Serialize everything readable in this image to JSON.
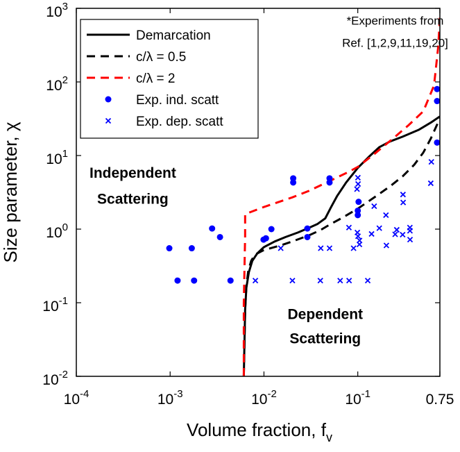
{
  "chart_data": {
    "type": "line",
    "xlabel": "Volume fraction, f",
    "xlabel_sub": "v",
    "ylabel": "Size parameter, χ",
    "x_scale": "log",
    "y_scale": "log",
    "xlim": [
      0.0001,
      0.75
    ],
    "ylim": [
      0.01,
      1000
    ],
    "x_ticks": [
      {
        "v": 0.0001,
        "base": "10",
        "exp": "-4"
      },
      {
        "v": 0.001,
        "base": "10",
        "exp": "-3"
      },
      {
        "v": 0.01,
        "base": "10",
        "exp": "-2"
      },
      {
        "v": 0.1,
        "base": "10",
        "exp": "-1"
      },
      {
        "v": 0.75,
        "base": "0.75",
        "exp": ""
      }
    ],
    "y_ticks": [
      {
        "v": 0.01,
        "base": "10",
        "exp": "-2"
      },
      {
        "v": 0.1,
        "base": "10",
        "exp": "-1"
      },
      {
        "v": 1,
        "base": "10",
        "exp": "0"
      },
      {
        "v": 10,
        "base": "10",
        "exp": "1"
      },
      {
        "v": 100,
        "base": "10",
        "exp": "2"
      },
      {
        "v": 1000,
        "base": "10",
        "exp": "3"
      }
    ],
    "grid": false,
    "legend_position": "top-left",
    "series": [
      {
        "name": "Demarcation",
        "kind": "line",
        "color": "#000000",
        "dash": "solid",
        "points": [
          [
            0.0061,
            0.01
          ],
          [
            0.0062,
            0.03
          ],
          [
            0.0063,
            0.08
          ],
          [
            0.0065,
            0.16
          ],
          [
            0.0069,
            0.26
          ],
          [
            0.0075,
            0.37
          ],
          [
            0.0085,
            0.47
          ],
          [
            0.01,
            0.57
          ],
          [
            0.013,
            0.68
          ],
          [
            0.017,
            0.78
          ],
          [
            0.023,
            0.9
          ],
          [
            0.03,
            1.04
          ],
          [
            0.037,
            1.17
          ],
          [
            0.045,
            1.4
          ],
          [
            0.052,
            2.0
          ],
          [
            0.06,
            2.8
          ],
          [
            0.075,
            4.3
          ],
          [
            0.1,
            6.8
          ],
          [
            0.13,
            9.5
          ],
          [
            0.17,
            13.0
          ],
          [
            0.22,
            15.5
          ],
          [
            0.3,
            18.0
          ],
          [
            0.45,
            22.5
          ],
          [
            0.6,
            28.0
          ],
          [
            0.75,
            34.0
          ]
        ]
      },
      {
        "name": "c/λ = 0.5",
        "kind": "line",
        "color": "#000000",
        "dash": "dashed",
        "points": [
          [
            0.0061,
            0.01
          ],
          [
            0.0062,
            0.03
          ],
          [
            0.0063,
            0.08
          ],
          [
            0.0065,
            0.17
          ],
          [
            0.0068,
            0.27
          ],
          [
            0.0073,
            0.37
          ],
          [
            0.008,
            0.45
          ],
          [
            0.01,
            0.52
          ],
          [
            0.015,
            0.6
          ],
          [
            0.02,
            0.68
          ],
          [
            0.03,
            0.82
          ],
          [
            0.04,
            0.97
          ],
          [
            0.05,
            1.15
          ],
          [
            0.07,
            1.45
          ],
          [
            0.1,
            1.9
          ],
          [
            0.15,
            2.7
          ],
          [
            0.22,
            3.8
          ],
          [
            0.3,
            5.2
          ],
          [
            0.4,
            7.5
          ],
          [
            0.5,
            11.0
          ],
          [
            0.6,
            17.0
          ],
          [
            0.75,
            32.0
          ]
        ]
      },
      {
        "name": "c/λ = 2",
        "kind": "line",
        "color": "#ff0000",
        "dash": "dashed",
        "points": [
          [
            0.0061,
            0.01
          ],
          [
            0.0061,
            0.1
          ],
          [
            0.0062,
            0.3
          ],
          [
            0.0063,
            0.8
          ],
          [
            0.0063,
            1.6
          ],
          [
            0.01,
            2.0
          ],
          [
            0.02,
            2.7
          ],
          [
            0.03,
            3.3
          ],
          [
            0.05,
            4.5
          ],
          [
            0.08,
            6.0
          ],
          [
            0.1,
            7.0
          ],
          [
            0.15,
            10.5
          ],
          [
            0.25,
            18.0
          ],
          [
            0.35,
            26.0
          ],
          [
            0.5,
            40.0
          ],
          [
            0.65,
            90.0
          ],
          [
            0.72,
            300.0
          ],
          [
            0.75,
            750.0
          ]
        ]
      },
      {
        "name": "Exp. ind. scatt",
        "kind": "marker",
        "marker": "circle",
        "color": "#0000ff",
        "points": [
          [
            0.00098,
            0.55
          ],
          [
            0.0017,
            0.55
          ],
          [
            0.0028,
            1.02
          ],
          [
            0.0034,
            0.78
          ],
          [
            0.0012,
            0.2
          ],
          [
            0.0018,
            0.2
          ],
          [
            0.0044,
            0.2
          ],
          [
            0.0099,
            0.72
          ],
          [
            0.0105,
            0.75
          ],
          [
            0.012,
            1.0
          ],
          [
            0.0205,
            4.3
          ],
          [
            0.0205,
            4.9
          ],
          [
            0.029,
            0.78
          ],
          [
            0.029,
            1.02
          ],
          [
            0.05,
            4.3
          ],
          [
            0.05,
            4.9
          ],
          [
            0.1,
            1.55
          ],
          [
            0.1,
            1.78
          ],
          [
            0.102,
            2.35
          ],
          [
            0.7,
            80.0
          ],
          [
            0.7,
            55.0
          ],
          [
            0.7,
            15.0
          ]
        ]
      },
      {
        "name": "Exp. dep. scatt",
        "kind": "marker",
        "marker": "x",
        "color": "#0000ff",
        "points": [
          [
            0.0081,
            0.2
          ],
          [
            0.0201,
            0.2
          ],
          [
            0.0399,
            0.2
          ],
          [
            0.0649,
            0.2
          ],
          [
            0.0808,
            0.2
          ],
          [
            0.1277,
            0.2
          ],
          [
            0.0151,
            0.55
          ],
          [
            0.0403,
            0.55
          ],
          [
            0.05,
            0.55
          ],
          [
            0.0902,
            0.55
          ],
          [
            0.0805,
            1.05
          ],
          [
            0.1042,
            0.62
          ],
          [
            0.099,
            0.9
          ],
          [
            0.1044,
            0.7
          ],
          [
            0.1006,
            0.8
          ],
          [
            0.1403,
            0.86
          ],
          [
            0.2018,
            0.6
          ],
          [
            0.1696,
            1.03
          ],
          [
            0.2602,
            0.98
          ],
          [
            0.3599,
            0.95
          ],
          [
            0.2502,
            0.85
          ],
          [
            0.3607,
            0.72
          ],
          [
            0.3007,
            0.84
          ],
          [
            0.3594,
            1.05
          ],
          [
            0.1997,
            1.55
          ],
          [
            0.1496,
            2.05
          ],
          [
            0.3033,
            2.95
          ],
          [
            0.3046,
            2.3
          ],
          [
            0.6086,
            8.2
          ],
          [
            0.5997,
            4.2
          ],
          [
            0.1008,
            4.1
          ],
          [
            0.1003,
            5.0
          ],
          [
            0.0981,
            3.5
          ]
        ]
      }
    ],
    "annotations": [
      {
        "text": "*Experiments from",
        "x": 0.25,
        "y": 600
      },
      {
        "text": "Ref. [1,2,9,11,19,20]",
        "x": 0.25,
        "y": 300
      },
      {
        "text": "Independent",
        "x": 0.0004,
        "y": 5
      },
      {
        "text": "Scattering",
        "x": 0.0004,
        "y": 2.2
      },
      {
        "text": "Dependent",
        "x": 0.045,
        "y": 0.06
      },
      {
        "text": "Scattering",
        "x": 0.045,
        "y": 0.028
      }
    ]
  }
}
